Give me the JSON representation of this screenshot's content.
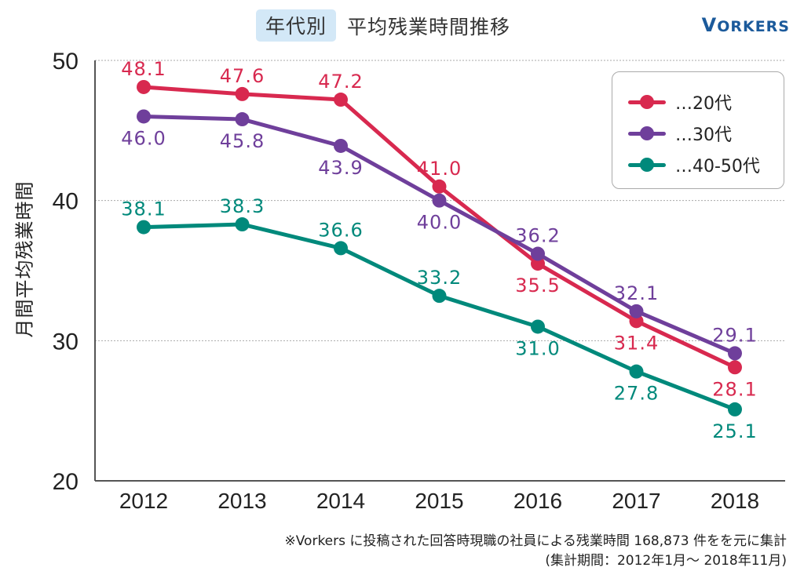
{
  "header": {
    "badge": "年代別",
    "title": "平均残業時間推移",
    "brand_first": "V",
    "brand_rest": "ORKERS"
  },
  "footnote": {
    "line1": "※Vorkers に投稿された回答時現職の社員による残業時間 168,873 件をを元に集計",
    "line2": "(集計期間：2012年1月～ 2018年11月)"
  },
  "chart_data": {
    "type": "line",
    "title": "年代別 平均残業時間推移",
    "xlabel": "",
    "ylabel": "月間平均残業時間",
    "x": [
      "2012",
      "2013",
      "2014",
      "2015",
      "2016",
      "2017",
      "2018"
    ],
    "ylim": [
      20,
      50
    ],
    "yticks": [
      20,
      30,
      40,
      50
    ],
    "grid": "horizontal dotted",
    "legend_position": "top-right",
    "series": [
      {
        "name": "…20代",
        "key": "s20",
        "color": "#d8294f",
        "values": [
          48.1,
          47.6,
          47.2,
          41.0,
          35.5,
          31.4,
          28.1
        ],
        "label_pos": [
          "above",
          "above",
          "above",
          "above",
          "below",
          "below",
          "below"
        ]
      },
      {
        "name": "…30代",
        "key": "s30",
        "color": "#6f3f9b",
        "values": [
          46.0,
          45.8,
          43.9,
          40.0,
          36.2,
          32.1,
          29.1
        ],
        "label_pos": [
          "below",
          "below",
          "below",
          "below",
          "above",
          "above",
          "above"
        ]
      },
      {
        "name": "…40-50代",
        "key": "s4050",
        "color": "#00897b",
        "values": [
          38.1,
          38.3,
          36.6,
          33.2,
          31.0,
          27.8,
          25.1
        ],
        "label_pos": [
          "above",
          "above",
          "above",
          "above",
          "below",
          "below",
          "below"
        ]
      }
    ]
  }
}
